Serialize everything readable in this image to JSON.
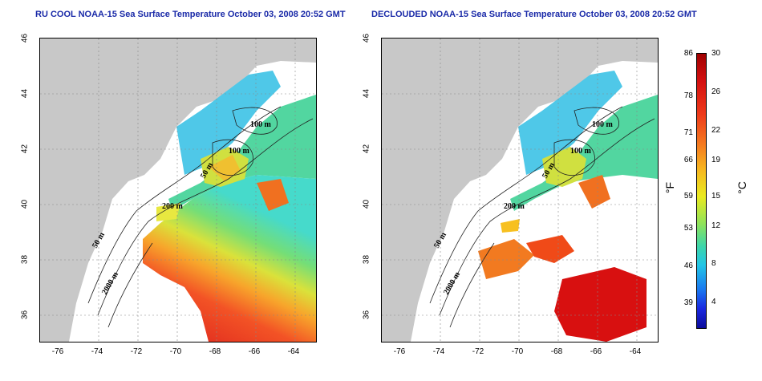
{
  "titles": {
    "left": "RU COOL NOAA-15 Sea Surface Temperature October 03, 2008 20:52 GMT",
    "right": "DECLOUDED NOAA-15 Sea Surface Temperature October 03, 2008 20:52 GMT"
  },
  "axes": {
    "x_ticks": [
      "-76",
      "-74",
      "-72",
      "-70",
      "-68",
      "-66",
      "-64"
    ],
    "y_ticks": [
      "46",
      "44",
      "42",
      "40",
      "38",
      "36"
    ]
  },
  "contour_labels": [
    "100 m",
    "100 m",
    "50 m",
    "200 m",
    "50 m",
    "2000 m"
  ],
  "colorbar": {
    "fahrenheit_ticks": [
      "86",
      "78",
      "71",
      "66",
      "59",
      "53",
      "46",
      "39"
    ],
    "celsius_ticks": [
      "30",
      "26",
      "22",
      "19",
      "15",
      "12",
      "8",
      "4"
    ],
    "unit_f": "°F",
    "unit_c": "°C"
  },
  "colors": {
    "land": "#c8c8c8",
    "title": "#1a2aa8"
  }
}
